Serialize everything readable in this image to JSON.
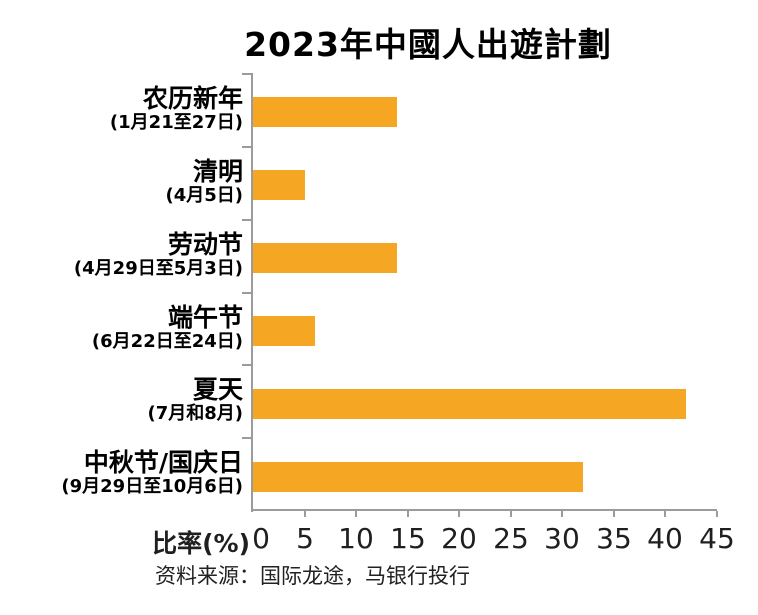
{
  "chart_data": {
    "type": "bar",
    "orientation": "horizontal",
    "title": "2023年中國人出遊計劃",
    "xlabel": "比率(%)",
    "ylabel": "",
    "xlim": [
      0,
      45
    ],
    "x_ticks": [
      0,
      5,
      10,
      15,
      20,
      25,
      30,
      35,
      40,
      45
    ],
    "grid": false,
    "legend": false,
    "categories": [
      {
        "label": "农历新年",
        "sublabel": "(1月21至27日)"
      },
      {
        "label": "清明",
        "sublabel": "(4月5日)"
      },
      {
        "label": "劳动节",
        "sublabel": "(4月29日至5月3日)"
      },
      {
        "label": "端午节",
        "sublabel": "(6月22日至24日)"
      },
      {
        "label": "夏天",
        "sublabel": "(7月和8月)"
      },
      {
        "label": "中秋节/国庆日",
        "sublabel": "(9月29日至10月6日)"
      }
    ],
    "values": [
      14,
      5,
      14,
      6,
      42,
      32
    ],
    "bar_color": "#F5A623",
    "axis_color": "#9B9B9B"
  },
  "source": {
    "text": "资料来源：国际龙途，马银行投行"
  }
}
